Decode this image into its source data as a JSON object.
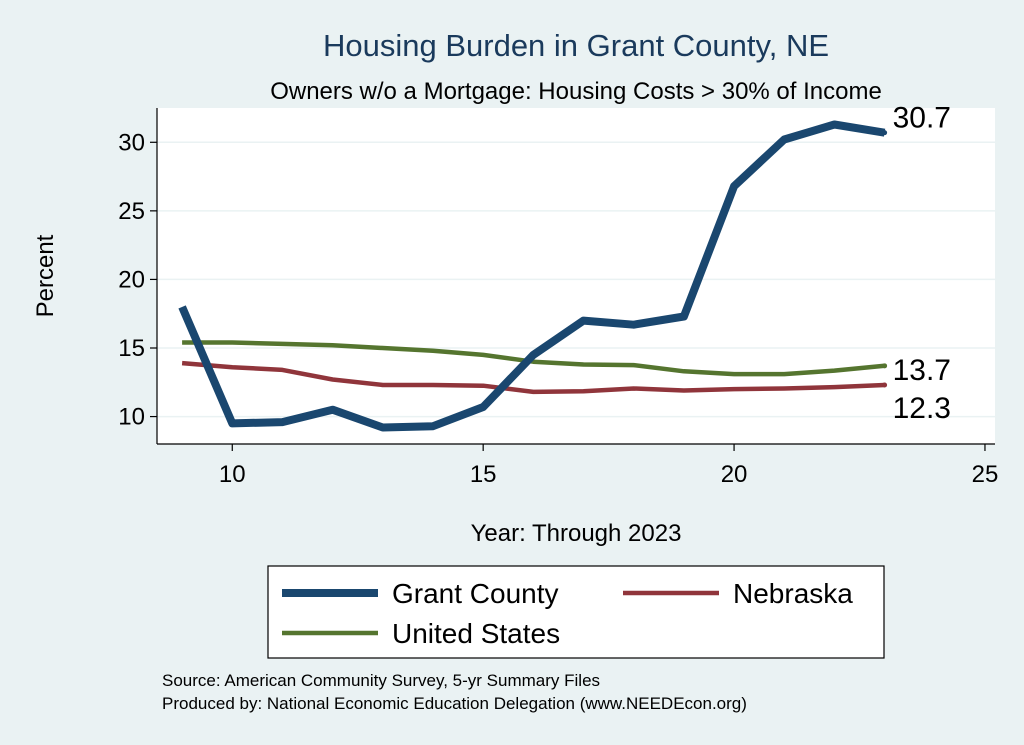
{
  "chart_data": {
    "type": "line",
    "title": "Housing Burden in Grant County, NE",
    "subtitle": "Owners w/o a Mortgage: Housing Costs > 30% of Income",
    "xlabel": "Year: Through 2023",
    "ylabel": "Percent",
    "xlim": [
      8.5,
      25.2
    ],
    "ylim": [
      8.0,
      32.5
    ],
    "xticks": [
      10,
      15,
      20,
      25
    ],
    "yticks": [
      10,
      15,
      20,
      25,
      30
    ],
    "grid": true,
    "legend_position": "bottom",
    "series": [
      {
        "name": "Grant County",
        "color": "#1a476f",
        "x": [
          9,
          10,
          11,
          12,
          13,
          14,
          15,
          16,
          17,
          18,
          19,
          20,
          21,
          22,
          23
        ],
        "values": [
          18.0,
          9.5,
          9.6,
          10.5,
          9.2,
          9.3,
          10.7,
          14.5,
          17.0,
          16.7,
          17.3,
          26.8,
          30.2,
          31.3,
          30.7
        ],
        "end_label": "30.7"
      },
      {
        "name": "Nebraska",
        "color": "#90353b",
        "x": [
          9,
          10,
          11,
          12,
          13,
          14,
          15,
          16,
          17,
          18,
          19,
          20,
          21,
          22,
          23
        ],
        "values": [
          13.9,
          13.6,
          13.4,
          12.7,
          12.3,
          12.3,
          12.25,
          11.8,
          11.85,
          12.05,
          11.9,
          12.0,
          12.05,
          12.15,
          12.3
        ],
        "end_label": "12.3"
      },
      {
        "name": "United States",
        "color": "#55752f",
        "x": [
          9,
          10,
          11,
          12,
          13,
          14,
          15,
          16,
          17,
          18,
          19,
          20,
          21,
          22,
          23
        ],
        "values": [
          15.4,
          15.4,
          15.3,
          15.2,
          15.0,
          14.8,
          14.5,
          14.0,
          13.8,
          13.75,
          13.3,
          13.1,
          13.1,
          13.35,
          13.7
        ],
        "end_label": "13.7"
      }
    ]
  },
  "notes": {
    "source": "Source: American Community Survey, 5-yr Summary Files",
    "produced": "Produced by: National Economic Education Delegation (www.NEEDEcon.org)"
  }
}
